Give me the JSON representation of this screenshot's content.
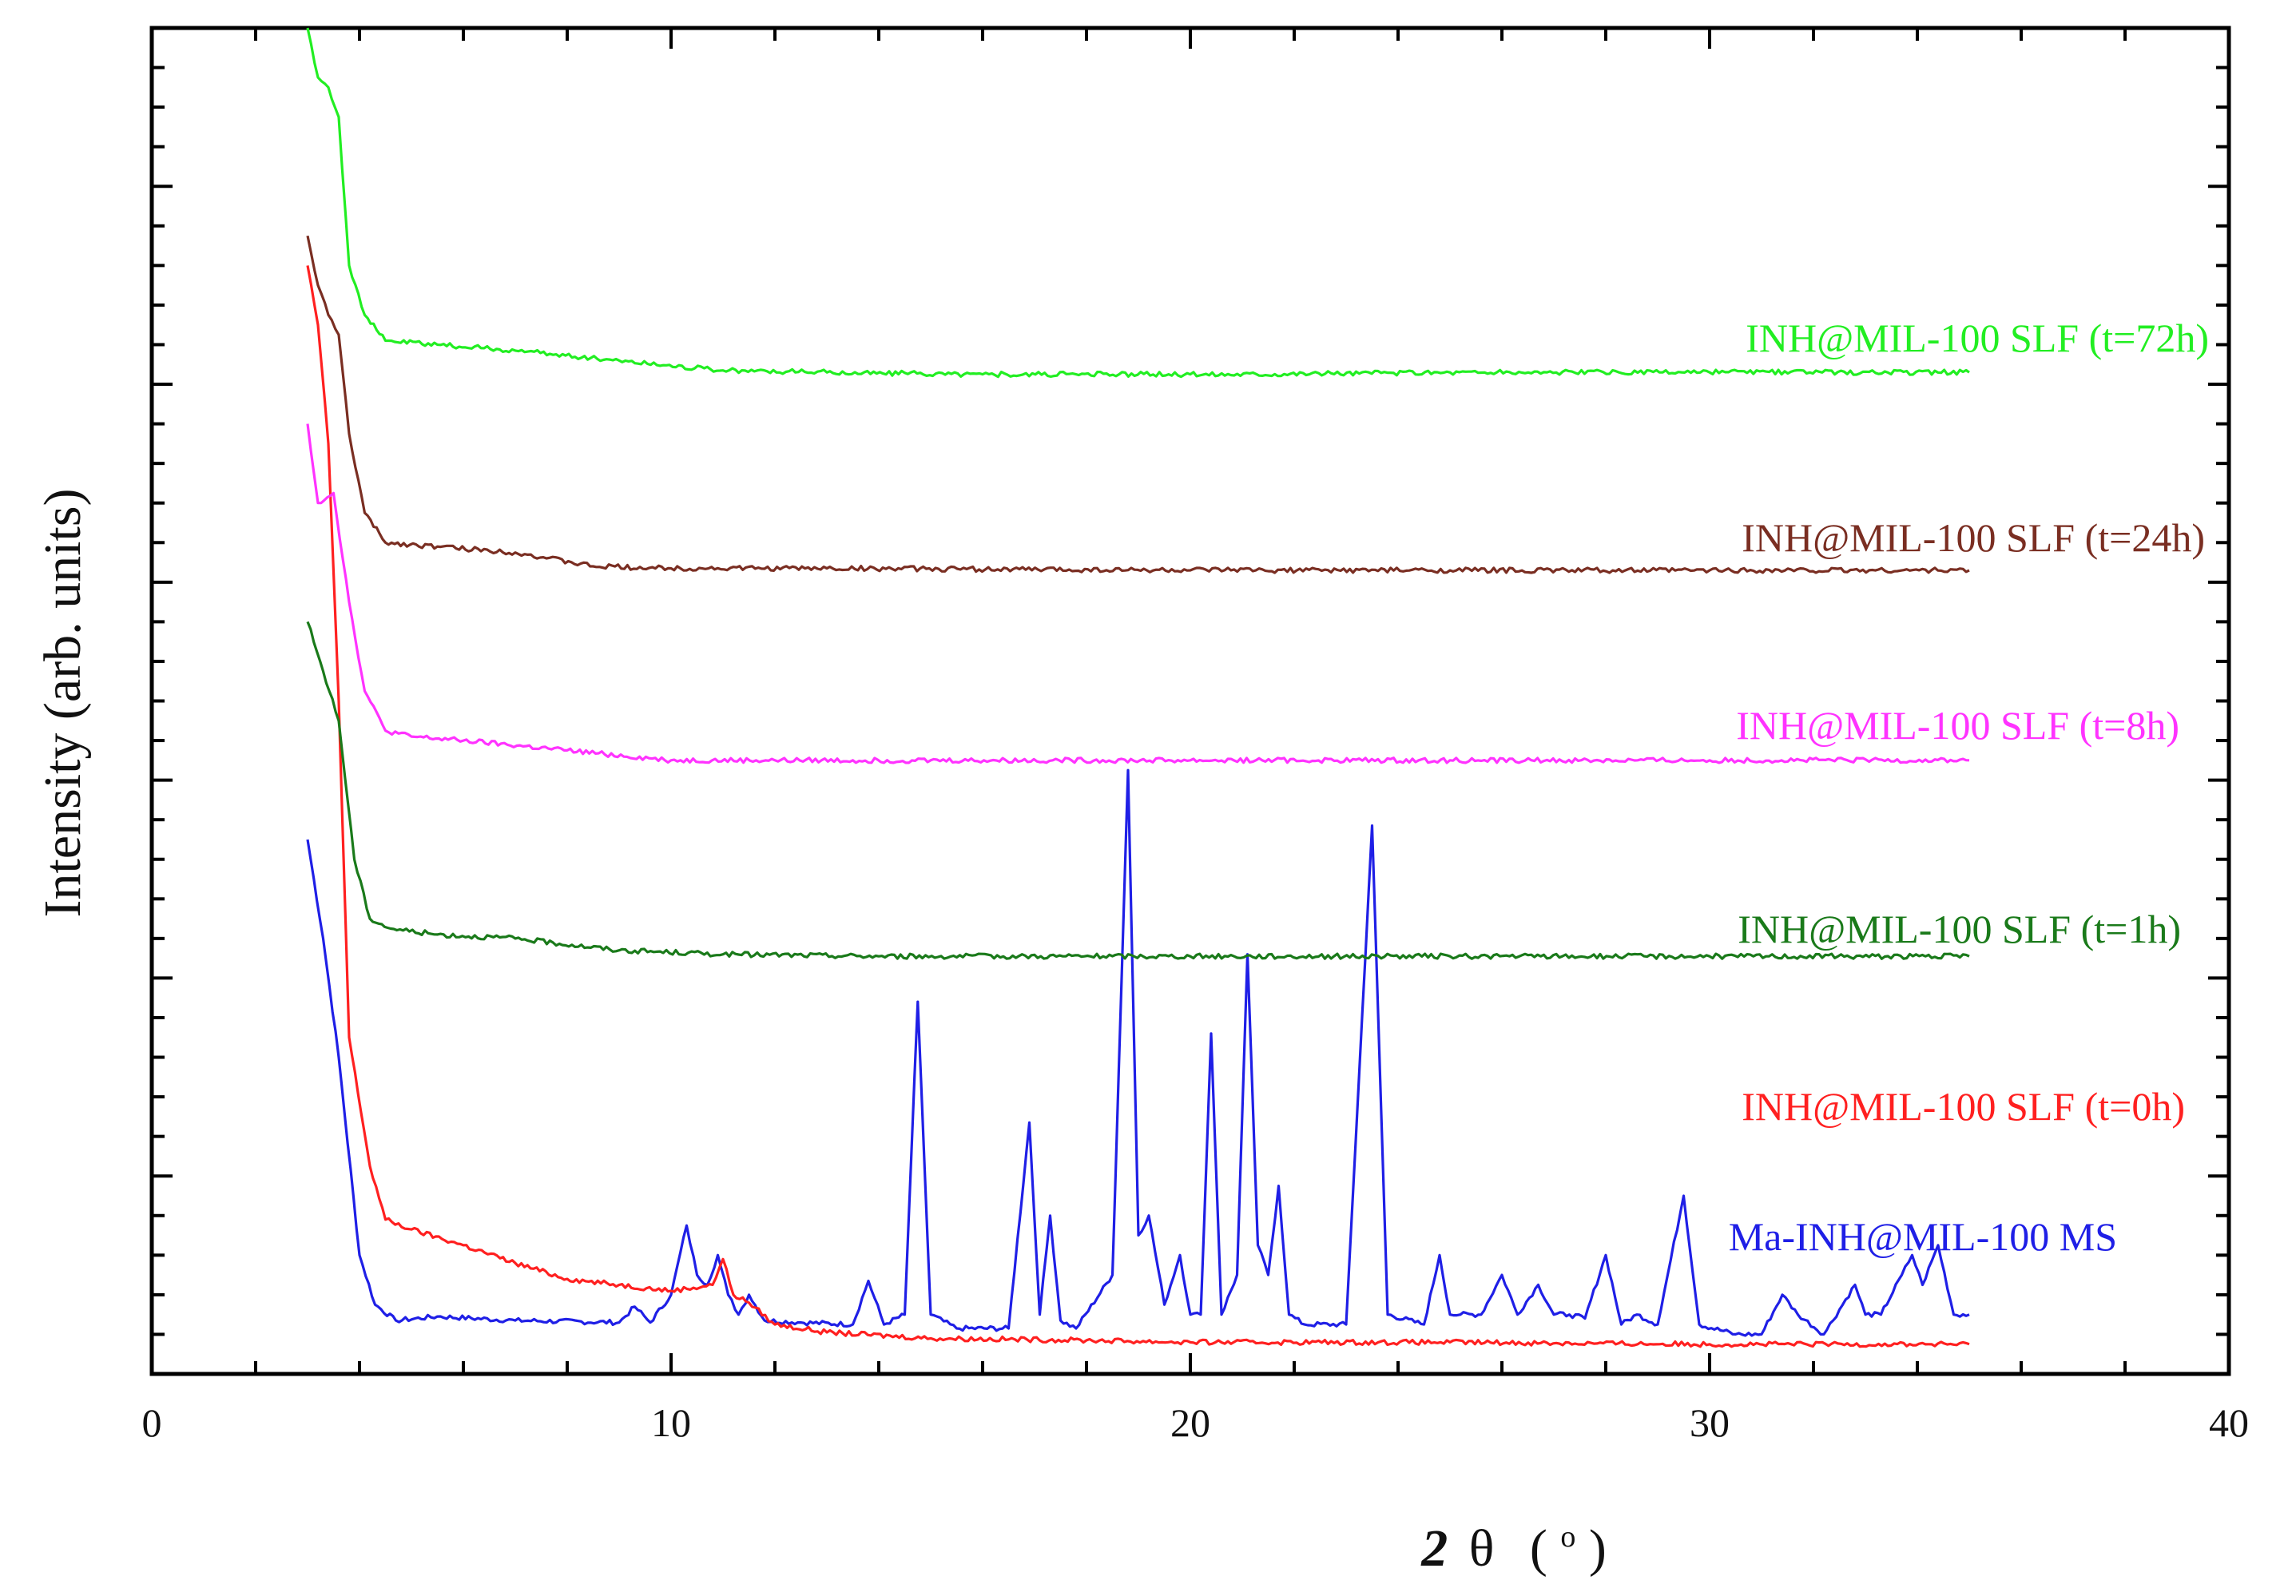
{
  "chart_data": {
    "type": "line",
    "xlabel_parts": [
      "2",
      "θ",
      "(",
      "o",
      ")"
    ],
    "ylabel": "Intensity (arb. units)",
    "xlim": [
      0,
      40
    ],
    "ylim": [
      0,
      6.8
    ],
    "x_ticks": [
      0,
      10,
      20,
      30,
      40
    ],
    "x_tick_labels": [
      "0",
      "10",
      "20",
      "30",
      "40"
    ],
    "y_major_ticks": [
      1,
      2,
      3,
      4,
      5,
      6
    ],
    "grid": false,
    "series": [
      {
        "name": "Ma-INH@MIL-100 MS",
        "color": "#1f1fe6",
        "x": [
          3.0,
          3.3,
          3.6,
          4.0,
          4.3,
          4.7,
          5.5,
          7,
          9,
          9.3,
          9.6,
          10.0,
          10.3,
          10.5,
          10.7,
          10.9,
          11.1,
          11.3,
          11.5,
          11.8,
          12.5,
          13.5,
          13.8,
          14.1,
          14.5,
          14.75,
          15.0,
          15.5,
          16.5,
          16.9,
          17.1,
          17.3,
          17.5,
          17.8,
          18.5,
          18.8,
          19.0,
          19.2,
          19.5,
          19.8,
          20.0,
          20.2,
          20.4,
          20.6,
          20.9,
          21.1,
          21.3,
          21.5,
          21.7,
          21.9,
          22.2,
          23.0,
          23.5,
          23.8,
          24.5,
          24.8,
          25.0,
          25.2,
          25.6,
          26.0,
          26.3,
          26.7,
          27.0,
          27.3,
          27.6,
          28.0,
          28.3,
          28.6,
          29.0,
          29.5,
          29.8,
          30.5,
          31.0,
          31.4,
          31.7,
          32.2,
          32.8,
          33.0,
          33.3,
          33.7,
          33.9,
          34.1,
          34.4,
          34.7,
          35.0
        ],
        "y": [
          2.7,
          2.2,
          1.6,
          0.6,
          0.35,
          0.27,
          0.29,
          0.27,
          0.26,
          0.34,
          0.26,
          0.4,
          0.75,
          0.5,
          0.45,
          0.6,
          0.4,
          0.3,
          0.4,
          0.27,
          0.26,
          0.25,
          0.47,
          0.25,
          0.3,
          1.88,
          0.3,
          0.23,
          0.23,
          1.27,
          0.3,
          0.8,
          0.27,
          0.23,
          0.5,
          3.05,
          0.7,
          0.8,
          0.35,
          0.6,
          0.3,
          0.3,
          1.72,
          0.3,
          0.5,
          2.12,
          0.65,
          0.5,
          0.95,
          0.3,
          0.25,
          0.25,
          2.77,
          0.3,
          0.25,
          0.6,
          0.3,
          0.3,
          0.3,
          0.5,
          0.3,
          0.45,
          0.3,
          0.3,
          0.28,
          0.6,
          0.25,
          0.3,
          0.25,
          0.9,
          0.25,
          0.2,
          0.2,
          0.4,
          0.3,
          0.2,
          0.45,
          0.3,
          0.3,
          0.5,
          0.6,
          0.45,
          0.65,
          0.3,
          0.3
        ]
      },
      {
        "name": "INH@MIL-100 SLF (t=0h)",
        "color": "#ff2020",
        "x": [
          3.0,
          3.2,
          3.4,
          3.6,
          3.8,
          4.2,
          4.5,
          5.0,
          6.0,
          7.0,
          8.0,
          9.0,
          10.0,
          10.8,
          11.0,
          11.2,
          11.5,
          12.0,
          13.0,
          15.0,
          18.0,
          20.0,
          25.0,
          30.0,
          35.0
        ],
        "y": [
          5.6,
          5.3,
          4.7,
          3.4,
          1.7,
          1.05,
          0.78,
          0.73,
          0.65,
          0.56,
          0.48,
          0.45,
          0.42,
          0.45,
          0.58,
          0.4,
          0.36,
          0.25,
          0.21,
          0.18,
          0.17,
          0.16,
          0.16,
          0.15,
          0.15
        ]
      },
      {
        "name": "INH@MIL-100 SLF (t=1h)",
        "color": "#1a7a1a",
        "x": [
          3.0,
          3.3,
          3.6,
          3.9,
          4.2,
          4.6,
          5.5,
          7.0,
          9.0,
          11.0,
          14.0,
          20.0,
          25.0,
          30.0,
          35.0
        ],
        "y": [
          3.8,
          3.55,
          3.3,
          2.6,
          2.3,
          2.25,
          2.22,
          2.2,
          2.14,
          2.12,
          2.11,
          2.11,
          2.11,
          2.11,
          2.11
        ]
      },
      {
        "name": "INH@MIL-100 SLF (t=8h)",
        "color": "#ff33ff",
        "x": [
          3.0,
          3.2,
          3.5,
          3.8,
          4.1,
          4.5,
          5.0,
          6.0,
          8.0,
          10.0,
          12.0,
          15.0,
          20.0,
          25.0,
          30.0,
          35.0
        ],
        "y": [
          4.8,
          4.4,
          4.45,
          3.9,
          3.45,
          3.25,
          3.22,
          3.2,
          3.15,
          3.1,
          3.1,
          3.1,
          3.1,
          3.1,
          3.1,
          3.1
        ]
      },
      {
        "name": "INH@MIL-100 SLF (t=24h)",
        "color": "#7a2e22",
        "x": [
          3.0,
          3.2,
          3.4,
          3.6,
          3.8,
          4.1,
          4.5,
          5.5,
          7.0,
          8.5,
          10.0,
          13.0,
          20.0,
          25.0,
          30.0,
          35.0
        ],
        "y": [
          5.75,
          5.5,
          5.35,
          5.25,
          4.75,
          4.35,
          4.2,
          4.18,
          4.15,
          4.08,
          4.07,
          4.07,
          4.06,
          4.06,
          4.06,
          4.06
        ]
      },
      {
        "name": "INH@MIL-100 SLF (t=72h)",
        "color": "#22ee22",
        "x": [
          3.0,
          3.2,
          3.4,
          3.6,
          3.8,
          4.1,
          4.5,
          5.5,
          7.0,
          9.0,
          11.0,
          13.0,
          16.0,
          20.0,
          25.0,
          30.0,
          35.0
        ],
        "y": [
          6.8,
          6.55,
          6.5,
          6.35,
          5.6,
          5.35,
          5.22,
          5.2,
          5.17,
          5.12,
          5.07,
          5.06,
          5.05,
          5.05,
          5.06,
          5.06,
          5.06
        ]
      }
    ]
  }
}
